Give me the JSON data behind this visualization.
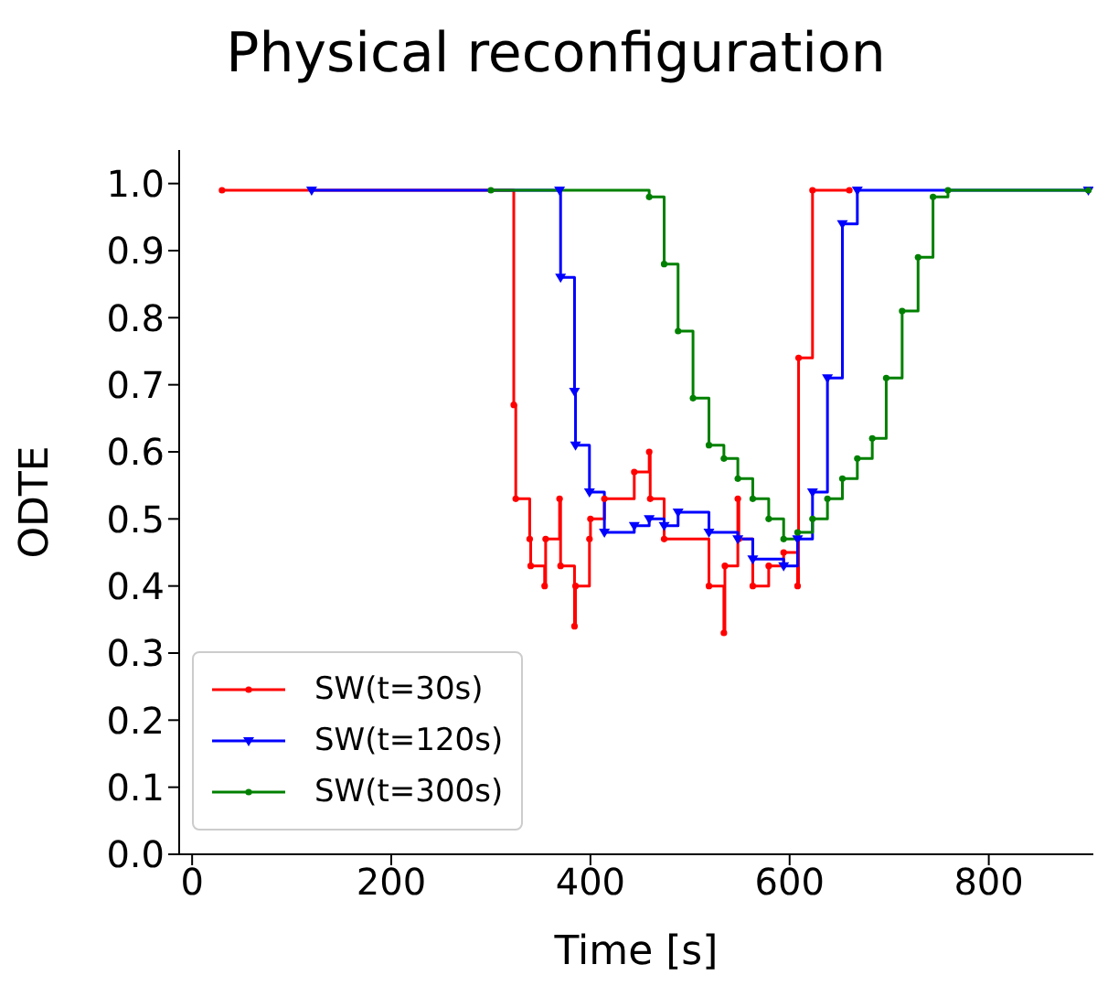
{
  "chart_data": {
    "type": "step",
    "title": "Physical reconfiguration",
    "xlabel": "Time [s]",
    "ylabel": "ODTE",
    "xlim": [
      -13,
      905
    ],
    "xticks": [
      0,
      200,
      400,
      600,
      800
    ],
    "ylim": [
      0,
      1.05
    ],
    "yticks": [
      {
        "value": 0,
        "label": "0.0"
      },
      0.1,
      0.2,
      0.3,
      0.4,
      0.5,
      0.6,
      0.7,
      0.8,
      0.9,
      {
        "value": 1,
        "label": "1.0"
      }
    ],
    "grid": false,
    "legend": "bottom left",
    "series": [
      {
        "name": "SW(t=30s)",
        "color": "#ff0000",
        "marker": "circle",
        "x": [
          30,
          323,
          325,
          339,
          340,
          354,
          355,
          369,
          370,
          384,
          385,
          399,
          400,
          414,
          444,
          459,
          460,
          474,
          519,
          534,
          535,
          548,
          549,
          563,
          579,
          594,
          608,
          609,
          623,
          660
        ],
        "values": [
          0.99,
          0.67,
          0.53,
          0.47,
          0.43,
          0.4,
          0.47,
          0.53,
          0.43,
          0.34,
          0.4,
          0.47,
          0.5,
          0.53,
          0.57,
          0.6,
          0.53,
          0.47,
          0.4,
          0.33,
          0.43,
          0.53,
          0.47,
          0.4,
          0.43,
          0.45,
          0.4,
          0.74,
          0.99,
          0.99
        ]
      },
      {
        "name": "SW(t=120s)",
        "color": "#0000ff",
        "marker": "triangle",
        "x": [
          120,
          369,
          370,
          384,
          385,
          399,
          414,
          444,
          459,
          474,
          488,
          519,
          548,
          563,
          594,
          608,
          623,
          638,
          653,
          668,
          900
        ],
        "values": [
          0.99,
          0.99,
          0.86,
          0.69,
          0.61,
          0.54,
          0.48,
          0.49,
          0.5,
          0.49,
          0.51,
          0.48,
          0.47,
          0.44,
          0.43,
          0.47,
          0.54,
          0.71,
          0.94,
          0.99,
          0.99
        ]
      },
      {
        "name": "SW(t=300s)",
        "color": "#008000",
        "marker": "circle",
        "x": [
          300,
          459,
          474,
          488,
          503,
          519,
          534,
          548,
          563,
          579,
          594,
          608,
          623,
          638,
          653,
          668,
          683,
          697,
          713,
          729,
          744,
          759,
          900
        ],
        "values": [
          0.99,
          0.98,
          0.88,
          0.78,
          0.68,
          0.61,
          0.59,
          0.56,
          0.53,
          0.5,
          0.47,
          0.48,
          0.5,
          0.53,
          0.56,
          0.59,
          0.62,
          0.71,
          0.81,
          0.89,
          0.98,
          0.99,
          0.99
        ]
      }
    ]
  }
}
